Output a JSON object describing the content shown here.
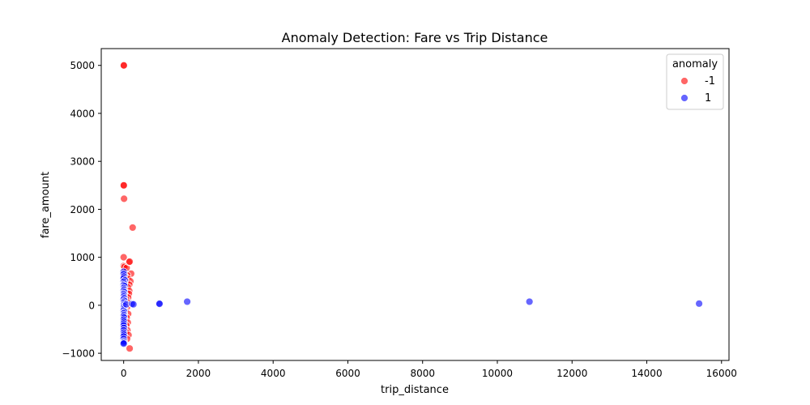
{
  "chart_data": {
    "type": "scatter",
    "title": "Anomaly Detection: Fare vs Trip Distance",
    "xlabel": "trip_distance",
    "ylabel": "fare_amount",
    "xlim": [
      -600,
      16200
    ],
    "ylim": [
      -1150,
      5350
    ],
    "xticks": [
      0,
      2000,
      4000,
      6000,
      8000,
      10000,
      12000,
      14000,
      16000
    ],
    "xtick_labels": [
      "0",
      "2000",
      "4000",
      "6000",
      "8000",
      "10000",
      "12000",
      "14000",
      "16000"
    ],
    "yticks": [
      -1000,
      0,
      1000,
      2000,
      3000,
      4000,
      5000
    ],
    "ytick_labels": [
      "−1000",
      "0",
      "1000",
      "2000",
      "3000",
      "4000",
      "5000"
    ],
    "grid": false,
    "legend": {
      "title": "anomaly",
      "placement": "top-right"
    },
    "series": [
      {
        "name": "-1",
        "color": "#ff0000",
        "points": [
          [
            0,
            5000
          ],
          [
            5,
            5000
          ],
          [
            0,
            2500
          ],
          [
            3,
            2500
          ],
          [
            10,
            2220
          ],
          [
            240,
            1620
          ],
          [
            0,
            1000
          ],
          [
            0,
            820
          ],
          [
            20,
            800
          ],
          [
            80,
            780
          ],
          [
            140,
            900
          ],
          [
            160,
            910
          ],
          [
            200,
            660
          ],
          [
            100,
            620
          ],
          [
            40,
            600
          ],
          [
            0,
            590
          ],
          [
            60,
            560
          ],
          [
            120,
            550
          ],
          [
            180,
            500
          ],
          [
            10,
            510
          ],
          [
            90,
            480
          ],
          [
            30,
            450
          ],
          [
            150,
            430
          ],
          [
            60,
            400
          ],
          [
            110,
            380
          ],
          [
            0,
            350
          ],
          [
            40,
            330
          ],
          [
            150,
            300
          ],
          [
            20,
            280
          ],
          [
            90,
            250
          ],
          [
            140,
            240
          ],
          [
            50,
            200
          ],
          [
            0,
            180
          ],
          [
            120,
            160
          ],
          [
            70,
            120
          ],
          [
            30,
            90
          ],
          [
            100,
            60
          ],
          [
            10,
            40
          ],
          [
            60,
            20
          ],
          [
            90,
            -40
          ],
          [
            0,
            -60
          ],
          [
            50,
            -120
          ],
          [
            120,
            -180
          ],
          [
            20,
            -220
          ],
          [
            80,
            -260
          ],
          [
            0,
            -280
          ],
          [
            40,
            -330
          ],
          [
            110,
            -360
          ],
          [
            70,
            -420
          ],
          [
            20,
            -460
          ],
          [
            100,
            -520
          ],
          [
            60,
            -560
          ],
          [
            130,
            -620
          ],
          [
            30,
            -660
          ],
          [
            90,
            -700
          ],
          [
            160,
            -900
          ]
        ]
      },
      {
        "name": "1",
        "color": "#0000ff",
        "points": [
          [
            0,
            700
          ],
          [
            0,
            650
          ],
          [
            5,
            600
          ],
          [
            0,
            560
          ],
          [
            30,
            520
          ],
          [
            0,
            490
          ],
          [
            10,
            450
          ],
          [
            0,
            420
          ],
          [
            20,
            400
          ],
          [
            0,
            360
          ],
          [
            5,
            330
          ],
          [
            0,
            300
          ],
          [
            15,
            270
          ],
          [
            0,
            240
          ],
          [
            5,
            210
          ],
          [
            0,
            180
          ],
          [
            10,
            150
          ],
          [
            0,
            120
          ],
          [
            20,
            90
          ],
          [
            0,
            60
          ],
          [
            5,
            30
          ],
          [
            0,
            0
          ],
          [
            10,
            -20
          ],
          [
            0,
            -50
          ],
          [
            5,
            -80
          ],
          [
            0,
            -110
          ],
          [
            15,
            -140
          ],
          [
            0,
            -170
          ],
          [
            5,
            -200
          ],
          [
            0,
            -230
          ],
          [
            10,
            -260
          ],
          [
            0,
            -300
          ],
          [
            5,
            -340
          ],
          [
            0,
            -380
          ],
          [
            0,
            -420
          ],
          [
            5,
            -470
          ],
          [
            0,
            -520
          ],
          [
            0,
            -570
          ],
          [
            5,
            -610
          ],
          [
            0,
            -650
          ],
          [
            0,
            -700
          ],
          [
            5,
            -750
          ],
          [
            0,
            -780
          ],
          [
            0,
            -800
          ],
          [
            70,
            20
          ],
          [
            220,
            30
          ],
          [
            260,
            20
          ],
          [
            950,
            40
          ],
          [
            960,
            30
          ],
          [
            1700,
            75
          ],
          [
            10860,
            75
          ],
          [
            15400,
            35
          ]
        ]
      }
    ]
  }
}
